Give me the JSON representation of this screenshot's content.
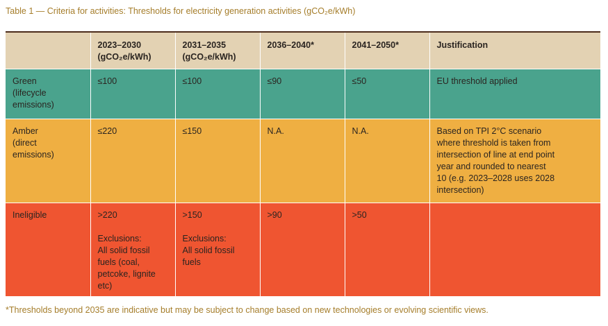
{
  "caption": "Table 1 — Criteria for activities: Thresholds for electricity generation activities (gCO₂e/kWh)",
  "header": {
    "col0": "",
    "col1_line1": "2023–2030",
    "col1_line2": "(gCO₂e/kWh)",
    "col2_line1": "2031–2035",
    "col2_line2": "(gCO₂e/kWh)",
    "col3": "2036–2040*",
    "col4": "2041–2050*",
    "col5": "Justification"
  },
  "rows": {
    "green": {
      "label_line1": "Green",
      "label_line2": "(lifecycle",
      "label_line3": "emissions)",
      "c1": "≤100",
      "c2": "≤100",
      "c3": "≤90",
      "c4": "≤50",
      "justification": "EU threshold applied"
    },
    "amber": {
      "label_line1": "Amber",
      "label_line2": "(direct",
      "label_line3": "emissions)",
      "c1": "≤220",
      "c2": "≤150",
      "c3": "N.A.",
      "c4": "N.A.",
      "just_l1": "Based on TPI 2°C scenario",
      "just_l2": "where threshold is taken from",
      "just_l3": "intersection of line at end point",
      "just_l4": "year and rounded to nearest",
      "just_l5": "10 (e.g. 2023–2028 uses 2028",
      "just_l6": "intersection)"
    },
    "ineligible": {
      "label": "Ineligible",
      "c1_value": ">220",
      "c1_excl_title": "Exclusions:",
      "c1_excl_l1": "All solid fossil",
      "c1_excl_l2": "fuels (coal,",
      "c1_excl_l3": "petcoke, lignite",
      "c1_excl_l4": "etc)",
      "c2_value": ">150",
      "c2_excl_title": "Exclusions:",
      "c2_excl_l1": "All solid fossil",
      "c2_excl_l2": "fuels",
      "c3": ">90",
      "c4": ">50",
      "justification": ""
    }
  },
  "footnote": "*Thresholds beyond 2035 are indicative but may be subject to change based on new technologies or evolving scientific views.",
  "colors": {
    "header": "#e3d2b3",
    "green": "#4aa38d",
    "amber": "#efaf42",
    "ineligible": "#ef5531",
    "caption": "#a57d2a"
  }
}
